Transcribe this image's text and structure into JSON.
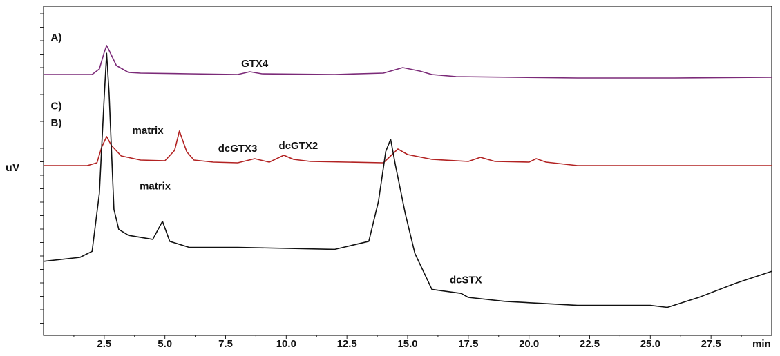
{
  "chart_data": {
    "type": "line",
    "xlabel": "min",
    "ylabel": "uV",
    "xlim": [
      0,
      30
    ],
    "x_ticks": [
      "2.5",
      "5.0",
      "7.5",
      "10.0",
      "12.5",
      "15.0",
      "17.5",
      "20.0",
      "22.5",
      "25.0",
      "27.5"
    ],
    "grid": false,
    "series": [
      {
        "name": "A)",
        "color": "#7b2a78",
        "x": [
          0,
          2.0,
          2.3,
          2.5,
          2.6,
          2.7,
          3.0,
          3.5,
          4.0,
          6.0,
          8.0,
          8.5,
          9.0,
          12.0,
          14.0,
          14.8,
          15.5,
          16.0,
          17.0,
          22.0,
          26.0,
          30.0
        ],
        "y": [
          20,
          20,
          28,
          52,
          62,
          55,
          33,
          23,
          22,
          21,
          20,
          24,
          21,
          20,
          22,
          30,
          25,
          20,
          17,
          15,
          15,
          16
        ]
      },
      {
        "name": "B)",
        "color": "#b22222",
        "x": [
          0,
          1.8,
          2.2,
          2.4,
          2.6,
          2.8,
          3.2,
          4.0,
          5.0,
          5.4,
          5.6,
          5.9,
          6.2,
          7.0,
          8.0,
          8.7,
          9.3,
          9.9,
          10.3,
          11.0,
          14.0,
          14.6,
          15.0,
          16.0,
          17.5,
          18.0,
          18.6,
          20.0,
          20.3,
          20.7,
          22.0,
          30.0
        ],
        "y": [
          18,
          18,
          22,
          45,
          60,
          47,
          32,
          26,
          25,
          40,
          68,
          38,
          26,
          23,
          22,
          28,
          23,
          33,
          27,
          24,
          22,
          42,
          34,
          27,
          24,
          30,
          24,
          23,
          28,
          23,
          18,
          18
        ]
      },
      {
        "name": "C)",
        "color": "#111111",
        "x": [
          0,
          1.5,
          2.0,
          2.3,
          2.5,
          2.6,
          2.7,
          2.9,
          3.1,
          3.5,
          4.5,
          4.9,
          5.2,
          6.0,
          8.0,
          12.0,
          13.4,
          13.8,
          14.1,
          14.3,
          14.5,
          14.9,
          15.3,
          16.0,
          17.2,
          17.5,
          19.0,
          22.0,
          25.0,
          25.7,
          27.0,
          28.5,
          30.0
        ],
        "y": [
          28,
          30,
          33,
          62,
          110,
          132,
          112,
          54,
          44,
          41,
          39,
          48,
          38,
          35,
          35,
          34,
          38,
          58,
          83,
          89,
          76,
          52,
          32,
          14,
          12,
          10,
          8,
          6,
          6,
          5,
          10,
          17,
          23
        ]
      }
    ],
    "annotations": [
      {
        "text": "A)",
        "x": 0.3,
        "series": "A)",
        "y": 69
      },
      {
        "text": "GTX4",
        "x": 8.7,
        "series": "A)",
        "y": 31
      },
      {
        "text": "B)",
        "x": 0.3,
        "series": "B)",
        "y": 75
      },
      {
        "text": "matrix",
        "x": 4.3,
        "series": "B)",
        "y": 64
      },
      {
        "text": "dcGTX3",
        "x": 8.0,
        "series": "B)",
        "y": 38
      },
      {
        "text": "dcGTX2",
        "x": 10.5,
        "series": "B)",
        "y": 42
      },
      {
        "text": "C)",
        "x": 0.3,
        "series": "C)",
        "y": 104
      },
      {
        "text": "matrix",
        "x": 4.6,
        "series": "C)",
        "y": 64
      },
      {
        "text": "dcSTX",
        "x": 17.4,
        "series": "C)",
        "y": 17
      }
    ]
  }
}
